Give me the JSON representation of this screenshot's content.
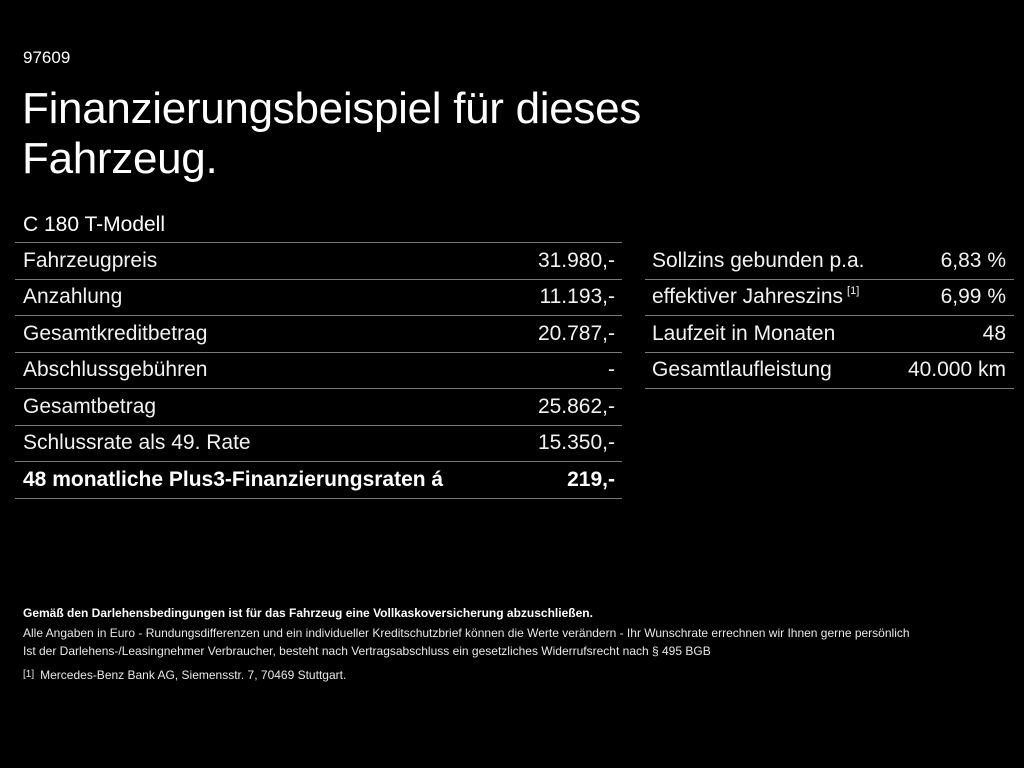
{
  "header": {
    "code": "97609",
    "title_line1": "Finanzierungsbeispiel für dieses",
    "title_line2": "Fahrzeug.",
    "model": "C 180 T-Modell"
  },
  "left_table": {
    "rows": [
      {
        "label": "Fahrzeugpreis",
        "value": "31.980,-"
      },
      {
        "label": "Anzahlung",
        "value": "11.193,-"
      },
      {
        "label": "Gesamtkreditbetrag",
        "value": "20.787,-"
      },
      {
        "label": "Abschlussgebühren",
        "value": "-"
      },
      {
        "label": "Gesamtbetrag",
        "value": "25.862,-"
      },
      {
        "label": "Schlussrate als 49. Rate",
        "value": "15.350,-"
      },
      {
        "label": "48 monatliche Plus3-Finanzierungsraten á",
        "value": "219,-",
        "bold": true
      }
    ]
  },
  "right_table": {
    "rows": [
      {
        "label": "Sollzins gebunden p.a.",
        "value": "6,83 %"
      },
      {
        "label": "effektiver Jahreszins",
        "footnote": "[1]",
        "value": "6,99 %"
      },
      {
        "label": "Laufzeit in Monaten",
        "value": "48"
      },
      {
        "label": "Gesamtlaufleistung",
        "value": "40.000 km"
      }
    ]
  },
  "footer": {
    "insurance_note": "Gemäß den Darlehensbedingungen ist für das Fahrzeug eine Vollkaskoversicherung abzuschließen.",
    "disclaimer": "Alle Angaben in Euro - Rundungsdifferenzen und ein individueller Kreditschutzbrief können die Werte verändern - Ihr Wunschrate errechnen wir Ihnen gerne persönlich",
    "withdrawal": "Ist der Darlehens-/Leasingnehmer Verbraucher, besteht nach Vertragsabschluss ein gesetzliches Widerrufsrecht nach § 495 BGB",
    "footnote_mark": "[1]",
    "footnote_text": "Mercedes-Benz Bank AG, Siemensstr. 7, 70469 Stuttgart."
  },
  "colors": {
    "background": "#000000",
    "text": "#ffffff",
    "divider": "#7a7a7a"
  }
}
